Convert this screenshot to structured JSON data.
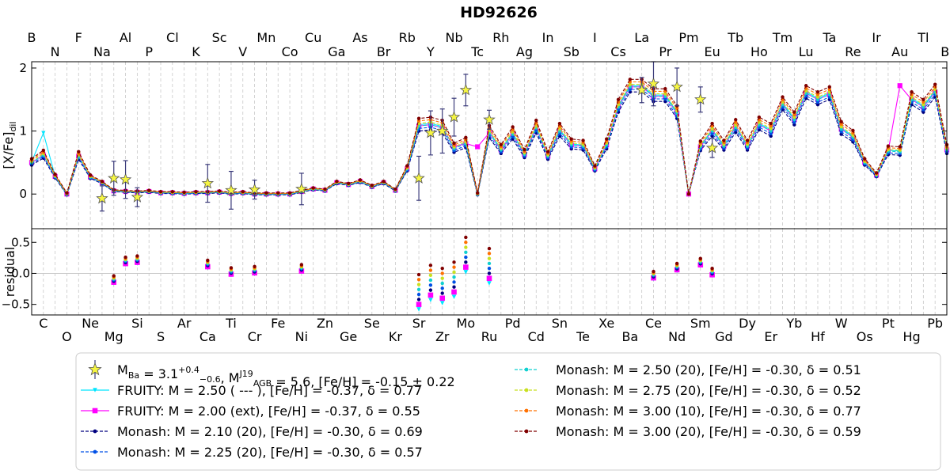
{
  "chart_data": {
    "type": "line",
    "title": "HD92626",
    "top_element_labels": [
      "B",
      "N",
      "F",
      "Na",
      "Al",
      "P",
      "Cl",
      "K",
      "Sc",
      "V",
      "Mn",
      "Co",
      "Cu",
      "Ga",
      "As",
      "Br",
      "Rb",
      "Y",
      "Nb",
      "Tc",
      "Rh",
      "Ag",
      "In",
      "Sb",
      "I",
      "Cs",
      "La",
      "Pr",
      "Pm",
      "Eu",
      "Tb",
      "Ho",
      "Tm",
      "Lu",
      "Ta",
      "Re",
      "Ir",
      "Au",
      "Tl",
      "Bi"
    ],
    "bottom_element_labels": [
      "C",
      "O",
      "Ne",
      "Mg",
      "Si",
      "S",
      "Ar",
      "Ca",
      "Ti",
      "Cr",
      "Fe",
      "Ni",
      "Zn",
      "Ge",
      "Se",
      "Kr",
      "Sr",
      "Zr",
      "Mo",
      "Ru",
      "Pd",
      "Cd",
      "Sn",
      "Te",
      "Xe",
      "Ba",
      "Ce",
      "Nd",
      "Sm",
      "Gd",
      "Dy",
      "Er",
      "Yb",
      "Hf",
      "W",
      "Os",
      "Pt",
      "Hg",
      "Pb"
    ],
    "x_range_Z": [
      5,
      83
    ],
    "top_panel": {
      "ylabel": "[X/Fe]",
      "ylabel_sub": "dil",
      "ylim": [
        -0.55,
        2.1
      ],
      "yticks": [
        0,
        1,
        2
      ],
      "series_x_Z": [
        5,
        6,
        7,
        8,
        9,
        10,
        11,
        12,
        13,
        14,
        15,
        16,
        17,
        18,
        19,
        20,
        21,
        22,
        23,
        24,
        25,
        26,
        27,
        28,
        29,
        30,
        31,
        32,
        33,
        34,
        35,
        36,
        37,
        38,
        39,
        40,
        41,
        42,
        43,
        44,
        45,
        46,
        47,
        48,
        49,
        50,
        51,
        52,
        53,
        54,
        55,
        56,
        57,
        58,
        59,
        60,
        61,
        62,
        63,
        64,
        65,
        66,
        67,
        68,
        69,
        70,
        71,
        72,
        73,
        74,
        75,
        76,
        77,
        78,
        79,
        80,
        81,
        82,
        83
      ],
      "base_curve": [
        0.5,
        0.62,
        0.28,
        0.0,
        0.6,
        0.27,
        0.18,
        0.05,
        0.04,
        0.03,
        0.04,
        0.02,
        0.02,
        0.01,
        0.02,
        0.02,
        0.03,
        0.01,
        0.02,
        0.0,
        0.0,
        0.0,
        0.0,
        0.04,
        0.08,
        0.06,
        0.18,
        0.15,
        0.2,
        0.12,
        0.18,
        0.06,
        0.4,
        1.08,
        1.1,
        1.05,
        0.72,
        0.8,
        0.0,
        0.97,
        0.7,
        0.95,
        0.63,
        1.05,
        0.6,
        1.0,
        0.78,
        0.76,
        0.4,
        0.78,
        1.38,
        1.7,
        1.7,
        1.55,
        1.55,
        1.28,
        0.56,
        0.75,
        1.0,
        0.76,
        1.06,
        0.76,
        1.1,
        1.0,
        1.42,
        1.18,
        1.6,
        1.5,
        1.58,
        1.03,
        0.9,
        0.5,
        0.3,
        0.68,
        0.67,
        1.5,
        1.38,
        1.62,
        0.7
      ]
    },
    "bottom_panel": {
      "ylabel": "residual",
      "ylim": [
        -0.67,
        0.72
      ],
      "yticks": [
        0.5,
        0.0,
        -0.5
      ],
      "ytick_labels": [
        "0.5",
        "0.0",
        "−0.5"
      ]
    },
    "observed": {
      "x_Z": [
        11,
        12,
        13,
        14,
        20,
        22,
        24,
        28,
        38,
        39,
        40,
        41,
        42,
        44,
        57,
        58,
        60,
        62,
        63
      ],
      "y": [
        -0.07,
        0.25,
        0.23,
        -0.05,
        0.17,
        0.06,
        0.07,
        0.08,
        0.25,
        0.97,
        1.0,
        1.22,
        1.65,
        1.18,
        1.65,
        1.75,
        1.7,
        1.5,
        0.73
      ],
      "err": [
        0.2,
        0.27,
        0.3,
        0.15,
        0.3,
        0.3,
        0.15,
        0.25,
        0.35,
        0.35,
        0.35,
        0.3,
        0.25,
        0.15,
        0.2,
        0.35,
        0.3,
        0.2,
        0.15
      ],
      "residual_x_Z": [
        12,
        13,
        14,
        20,
        22,
        24,
        28,
        38,
        39,
        40,
        41,
        42,
        44,
        58,
        60,
        62,
        63
      ],
      "residual": [
        -0.1,
        0.2,
        0.22,
        0.15,
        0.03,
        0.05,
        0.08,
        -0.3,
        -0.15,
        -0.2,
        -0.1,
        0.3,
        0.12,
        -0.03,
        0.1,
        0.18,
        0.02
      ]
    },
    "series": [
      {
        "key": "obs",
        "color": "#f5e52a",
        "label": "M<sub>Ba</sub> = 3.1<sup>+0.4</sup><sub>−0.6</sub>, M<sup>J19</sup><sub>AGB</sub> = 5.6, [Fe/H] = -0.15 ± 0.22"
      },
      {
        "key": "f250",
        "color": "#00e5ff",
        "offset": 0.02,
        "marker": "triangle",
        "label": "FRUITY:   M = 2.50 ( --- ),  [Fe/H] = -0.37,  δ = 0.77"
      },
      {
        "key": "f200",
        "color": "#ff00ff",
        "offset": 0.0,
        "marker": "square",
        "label": "FRUITY:   M = 2.00 (ext),  [Fe/H] = -0.37,  δ = 0.55"
      },
      {
        "key": "m210",
        "color": "#00007f",
        "offset": -0.08,
        "marker": "circle",
        "label": "Monash:  M = 2.10 (20),   [Fe/H] = -0.30,  δ = 0.69"
      },
      {
        "key": "m225",
        "color": "#0050e6",
        "offset": -0.04,
        "marker": "circle",
        "label": "Monash:  M = 2.25 (20),   [Fe/H] = -0.30,  δ = 0.57"
      },
      {
        "key": "m250",
        "color": "#10d0d0",
        "offset": 0.0,
        "marker": "circle",
        "label": "Monash:  M = 2.50 (20),   [Fe/H] = -0.30,  δ = 0.51"
      },
      {
        "key": "m275",
        "color": "#c8e020",
        "offset": 0.04,
        "marker": "circle",
        "label": "Monash:  M = 2.75 (20),   [Fe/H] = -0.30,  δ = 0.52"
      },
      {
        "key": "m300a",
        "color": "#ff7000",
        "offset": 0.08,
        "marker": "circle",
        "label": "Monash:  M = 3.00 (10),   [Fe/H] = -0.30,  δ = 0.77"
      },
      {
        "key": "m300b",
        "color": "#800000",
        "offset": 0.12,
        "marker": "circle",
        "label": "Monash:  M = 3.00 (20),   [Fe/H] = -0.30,  δ = 0.59"
      }
    ]
  }
}
